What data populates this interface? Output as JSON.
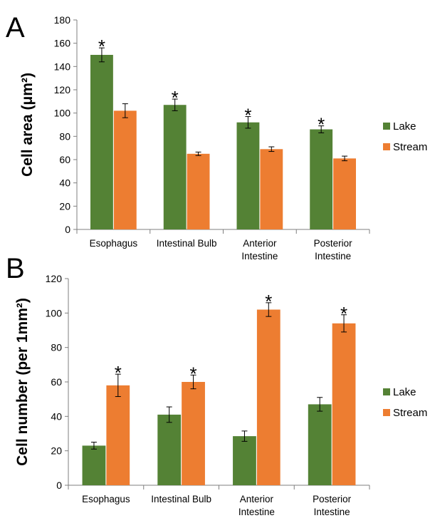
{
  "colors": {
    "lake": "#548235",
    "stream": "#ed7d31",
    "axis": "#7f7f7f",
    "errorbar": "#000000"
  },
  "chart_data": [
    {
      "panel": "A",
      "type": "bar",
      "ylabel": "Cell area (μm²)",
      "ylim": [
        0,
        180
      ],
      "yticks": [
        0,
        20,
        40,
        60,
        80,
        100,
        120,
        140,
        160,
        180
      ],
      "categories": [
        [
          "Esophagus"
        ],
        [
          "Intestinal Bulb"
        ],
        [
          "Anterior",
          "Intestine"
        ],
        [
          "Posterior",
          "Intestine"
        ]
      ],
      "series": [
        {
          "name": "Lake",
          "color": "#548235",
          "values": [
            150,
            107,
            92,
            86
          ],
          "errors": [
            6,
            5,
            5,
            3
          ]
        },
        {
          "name": "Stream",
          "color": "#ed7d31",
          "values": [
            102,
            65,
            69,
            61
          ],
          "errors": [
            6,
            1.5,
            2,
            2
          ]
        }
      ],
      "significance": {
        "marker": "*",
        "series": "Lake"
      },
      "legend": "right"
    },
    {
      "panel": "B",
      "type": "bar",
      "ylabel": "Cell number (per 1mm²)",
      "ylim": [
        0,
        120
      ],
      "yticks": [
        0,
        20,
        40,
        60,
        80,
        100,
        120
      ],
      "categories": [
        [
          "Esophagus"
        ],
        [
          "Intestinal Bulb"
        ],
        [
          "Anterior",
          "Intestine"
        ],
        [
          "Posterior",
          "Intestine"
        ]
      ],
      "series": [
        {
          "name": "Lake",
          "color": "#548235",
          "values": [
            23,
            41,
            28.5,
            47
          ],
          "errors": [
            2,
            4.5,
            3,
            4
          ]
        },
        {
          "name": "Stream",
          "color": "#ed7d31",
          "values": [
            58,
            60,
            102,
            94
          ],
          "errors": [
            6.5,
            4,
            4,
            5
          ]
        }
      ],
      "significance": {
        "marker": "*",
        "series": "Stream"
      },
      "legend": "right"
    }
  ]
}
